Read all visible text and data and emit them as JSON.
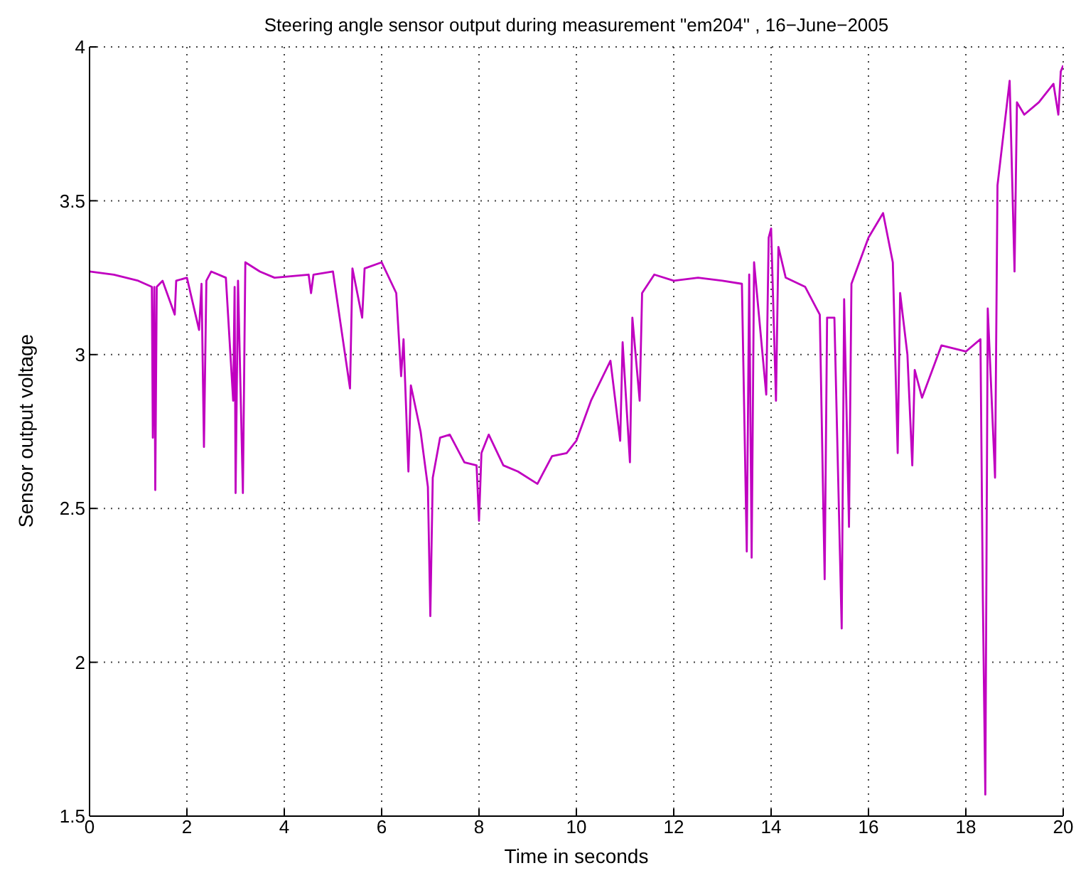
{
  "chart_data": {
    "type": "line",
    "title": "Steering angle sensor output during measurement \"em204\" , 16−June−2005",
    "xlabel": "Time in seconds",
    "ylabel": "Sensor output voltage",
    "x": [
      0,
      0.5,
      1.0,
      1.28,
      1.3,
      1.33,
      1.35,
      1.38,
      1.5,
      1.75,
      1.78,
      2.0,
      2.25,
      2.3,
      2.35,
      2.4,
      2.5,
      2.8,
      2.95,
      2.98,
      3.0,
      3.05,
      3.15,
      3.2,
      3.5,
      3.8,
      4.5,
      4.55,
      4.6,
      5.0,
      5.35,
      5.4,
      5.6,
      5.65,
      6.0,
      6.3,
      6.4,
      6.45,
      6.55,
      6.6,
      6.8,
      6.95,
      7.0,
      7.05,
      7.2,
      7.4,
      7.7,
      7.95,
      8.0,
      8.05,
      8.2,
      8.5,
      8.8,
      9.2,
      9.5,
      9.8,
      10.0,
      10.3,
      10.7,
      10.9,
      10.95,
      11.1,
      11.15,
      11.3,
      11.35,
      11.6,
      12.0,
      12.5,
      13.0,
      13.4,
      13.5,
      13.55,
      13.6,
      13.65,
      13.9,
      13.95,
      14.0,
      14.1,
      14.15,
      14.3,
      14.7,
      15.0,
      15.1,
      15.15,
      15.3,
      15.45,
      15.5,
      15.6,
      15.65,
      16.0,
      16.3,
      16.5,
      16.6,
      16.65,
      16.8,
      16.9,
      16.95,
      17.1,
      17.5,
      18.0,
      18.3,
      18.35,
      18.4,
      18.45,
      18.6,
      18.65,
      18.9,
      19.0,
      19.05,
      19.2,
      19.5,
      19.8,
      19.9,
      19.95,
      20.0
    ],
    "series": [
      {
        "color": "#c000c0",
        "values": [
          3.27,
          3.26,
          3.24,
          3.22,
          2.73,
          3.22,
          2.56,
          3.22,
          3.24,
          3.13,
          3.24,
          3.25,
          3.08,
          3.23,
          2.7,
          3.24,
          3.27,
          3.25,
          2.85,
          3.22,
          2.55,
          3.24,
          2.55,
          3.3,
          3.27,
          3.25,
          3.26,
          3.2,
          3.26,
          3.27,
          2.89,
          3.28,
          3.12,
          3.28,
          3.3,
          3.2,
          2.93,
          3.05,
          2.62,
          2.9,
          2.75,
          2.57,
          2.15,
          2.6,
          2.73,
          2.74,
          2.65,
          2.64,
          2.46,
          2.68,
          2.74,
          2.64,
          2.62,
          2.58,
          2.67,
          2.68,
          2.72,
          2.85,
          2.98,
          2.72,
          3.04,
          2.65,
          3.12,
          2.85,
          3.2,
          3.26,
          3.24,
          3.25,
          3.24,
          3.23,
          2.36,
          3.26,
          2.34,
          3.3,
          2.87,
          3.38,
          3.41,
          2.85,
          3.35,
          3.25,
          3.22,
          3.13,
          2.27,
          3.12,
          3.12,
          2.11,
          3.18,
          2.44,
          3.23,
          3.38,
          3.46,
          3.3,
          2.68,
          3.2,
          3.0,
          2.64,
          2.95,
          2.86,
          3.03,
          3.01,
          3.05,
          2.2,
          1.57,
          3.15,
          2.6,
          3.55,
          3.89,
          3.27,
          3.82,
          3.78,
          3.82,
          3.88,
          3.78,
          3.92,
          3.94
        ]
      }
    ],
    "xlim": [
      0,
      20
    ],
    "xticks": [
      0,
      2,
      4,
      6,
      8,
      10,
      12,
      14,
      16,
      18,
      20
    ],
    "ylim": [
      1.5,
      4
    ],
    "yticks": [
      1.5,
      2,
      2.5,
      3,
      3.5,
      4
    ],
    "grid": true,
    "marker": "none",
    "line_style": "solid",
    "legend": false
  }
}
